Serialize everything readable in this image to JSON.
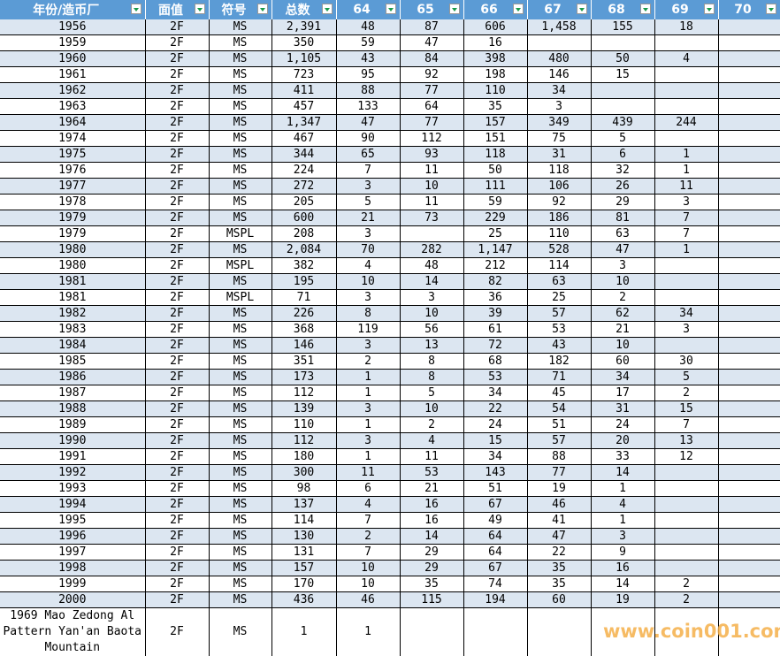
{
  "headers": [
    "年份/造币厂",
    "面值",
    "符号",
    "总数",
    "64",
    "65",
    "66",
    "67",
    "68",
    "69",
    "70"
  ],
  "rows": [
    [
      "1956",
      "2F",
      "MS",
      "2,391",
      "48",
      "87",
      "606",
      "1,458",
      "155",
      "18",
      ""
    ],
    [
      "1959",
      "2F",
      "MS",
      "350",
      "59",
      "47",
      "16",
      "",
      "",
      "",
      ""
    ],
    [
      "1960",
      "2F",
      "MS",
      "1,105",
      "43",
      "84",
      "398",
      "480",
      "50",
      "4",
      ""
    ],
    [
      "1961",
      "2F",
      "MS",
      "723",
      "95",
      "92",
      "198",
      "146",
      "15",
      "",
      ""
    ],
    [
      "1962",
      "2F",
      "MS",
      "411",
      "88",
      "77",
      "110",
      "34",
      "",
      "",
      ""
    ],
    [
      "1963",
      "2F",
      "MS",
      "457",
      "133",
      "64",
      "35",
      "3",
      "",
      "",
      ""
    ],
    [
      "1964",
      "2F",
      "MS",
      "1,347",
      "47",
      "77",
      "157",
      "349",
      "439",
      "244",
      ""
    ],
    [
      "1974",
      "2F",
      "MS",
      "467",
      "90",
      "112",
      "151",
      "75",
      "5",
      "",
      ""
    ],
    [
      "1975",
      "2F",
      "MS",
      "344",
      "65",
      "93",
      "118",
      "31",
      "6",
      "1",
      ""
    ],
    [
      "1976",
      "2F",
      "MS",
      "224",
      "7",
      "11",
      "50",
      "118",
      "32",
      "1",
      ""
    ],
    [
      "1977",
      "2F",
      "MS",
      "272",
      "3",
      "10",
      "111",
      "106",
      "26",
      "11",
      ""
    ],
    [
      "1978",
      "2F",
      "MS",
      "205",
      "5",
      "11",
      "59",
      "92",
      "29",
      "3",
      ""
    ],
    [
      "1979",
      "2F",
      "MS",
      "600",
      "21",
      "73",
      "229",
      "186",
      "81",
      "7",
      ""
    ],
    [
      "1979",
      "2F",
      "MSPL",
      "208",
      "3",
      "",
      "25",
      "110",
      "63",
      "7",
      ""
    ],
    [
      "1980",
      "2F",
      "MS",
      "2,084",
      "70",
      "282",
      "1,147",
      "528",
      "47",
      "1",
      ""
    ],
    [
      "1980",
      "2F",
      "MSPL",
      "382",
      "4",
      "48",
      "212",
      "114",
      "3",
      "",
      ""
    ],
    [
      "1981",
      "2F",
      "MS",
      "195",
      "10",
      "14",
      "82",
      "63",
      "10",
      "",
      ""
    ],
    [
      "1981",
      "2F",
      "MSPL",
      "71",
      "3",
      "3",
      "36",
      "25",
      "2",
      "",
      ""
    ],
    [
      "1982",
      "2F",
      "MS",
      "226",
      "8",
      "10",
      "39",
      "57",
      "62",
      "34",
      ""
    ],
    [
      "1983",
      "2F",
      "MS",
      "368",
      "119",
      "56",
      "61",
      "53",
      "21",
      "3",
      ""
    ],
    [
      "1984",
      "2F",
      "MS",
      "146",
      "3",
      "13",
      "72",
      "43",
      "10",
      "",
      ""
    ],
    [
      "1985",
      "2F",
      "MS",
      "351",
      "2",
      "8",
      "68",
      "182",
      "60",
      "30",
      ""
    ],
    [
      "1986",
      "2F",
      "MS",
      "173",
      "1",
      "8",
      "53",
      "71",
      "34",
      "5",
      ""
    ],
    [
      "1987",
      "2F",
      "MS",
      "112",
      "1",
      "5",
      "34",
      "45",
      "17",
      "2",
      ""
    ],
    [
      "1988",
      "2F",
      "MS",
      "139",
      "3",
      "10",
      "22",
      "54",
      "31",
      "15",
      ""
    ],
    [
      "1989",
      "2F",
      "MS",
      "110",
      "1",
      "2",
      "24",
      "51",
      "24",
      "7",
      ""
    ],
    [
      "1990",
      "2F",
      "MS",
      "112",
      "3",
      "4",
      "15",
      "57",
      "20",
      "13",
      ""
    ],
    [
      "1991",
      "2F",
      "MS",
      "180",
      "1",
      "11",
      "34",
      "88",
      "33",
      "12",
      ""
    ],
    [
      "1992",
      "2F",
      "MS",
      "300",
      "11",
      "53",
      "143",
      "77",
      "14",
      "",
      ""
    ],
    [
      "1993",
      "2F",
      "MS",
      "98",
      "6",
      "21",
      "51",
      "19",
      "1",
      "",
      ""
    ],
    [
      "1994",
      "2F",
      "MS",
      "137",
      "4",
      "16",
      "67",
      "46",
      "4",
      "",
      ""
    ],
    [
      "1995",
      "2F",
      "MS",
      "114",
      "7",
      "16",
      "49",
      "41",
      "1",
      "",
      ""
    ],
    [
      "1996",
      "2F",
      "MS",
      "130",
      "2",
      "14",
      "64",
      "47",
      "3",
      "",
      ""
    ],
    [
      "1997",
      "2F",
      "MS",
      "131",
      "7",
      "29",
      "64",
      "22",
      "9",
      "",
      ""
    ],
    [
      "1998",
      "2F",
      "MS",
      "157",
      "10",
      "29",
      "67",
      "35",
      "16",
      "",
      ""
    ],
    [
      "1999",
      "2F",
      "MS",
      "170",
      "10",
      "35",
      "74",
      "35",
      "14",
      "2",
      ""
    ],
    [
      "2000",
      "2F",
      "MS",
      "436",
      "46",
      "115",
      "194",
      "60",
      "19",
      "2",
      ""
    ],
    [
      "1969 Mao Zedong Al Pattern Yan'an Baota Mountain",
      "2F",
      "MS",
      "1",
      "1",
      "",
      "",
      "",
      "",
      "",
      ""
    ]
  ],
  "watermark": "www.coin001.com",
  "colors": {
    "header": "#5b9bd5",
    "band": "#dce6f1",
    "watermark": "#f5b04a"
  }
}
